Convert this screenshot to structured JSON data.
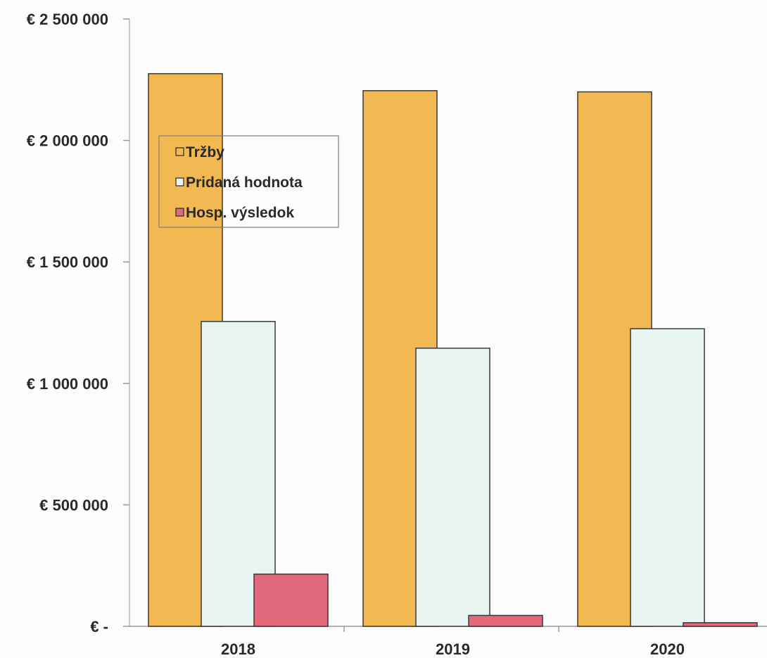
{
  "chart_data": {
    "type": "bar",
    "title": "",
    "xlabel": "",
    "ylabel": "",
    "categories": [
      "2018",
      "2019",
      "2020"
    ],
    "series": [
      {
        "name": "Tržby",
        "values": [
          2275000,
          2205000,
          2200000
        ],
        "color": "#f2b851"
      },
      {
        "name": "Pridaná hodnota",
        "values": [
          1255000,
          1145000,
          1225000
        ],
        "color": "#e8f5f3"
      },
      {
        "name": "Hosp. výsledok",
        "values": [
          215000,
          45000,
          15000
        ],
        "color": "#e2697b"
      }
    ],
    "ylim": [
      0,
      2500000
    ],
    "yticks": [
      {
        "value": 0,
        "label": "€ -"
      },
      {
        "value": 500000,
        "label": "€ 500 000"
      },
      {
        "value": 1000000,
        "label": "€ 1 000 000"
      },
      {
        "value": 1500000,
        "label": "€ 1 500 000"
      },
      {
        "value": 2000000,
        "label": "€ 2 000 000"
      },
      {
        "value": 2500000,
        "label": "€ 2 500 000"
      }
    ],
    "legend": {
      "placement": "top-left",
      "entries": [
        "Tržby",
        "Pridaná hodnota",
        "Hosp. výsledok"
      ]
    },
    "grid": false
  }
}
